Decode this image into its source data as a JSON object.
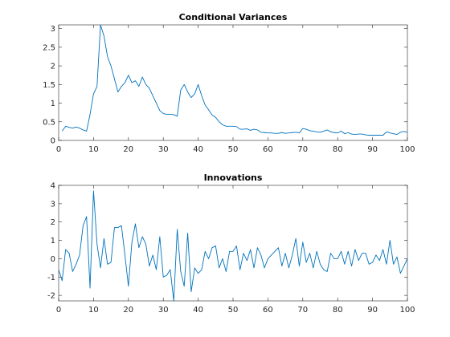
{
  "chart_data": [
    {
      "type": "line",
      "title": "Conditional Variances",
      "xlabel": "",
      "ylabel": "",
      "xlim": [
        0,
        100
      ],
      "ylim": [
        0,
        3.1
      ],
      "xticks": [
        0,
        10,
        20,
        30,
        40,
        50,
        60,
        70,
        80,
        90,
        100
      ],
      "yticks": [
        0,
        0.5,
        1,
        1.5,
        2,
        2.5,
        3
      ],
      "ytick_labels": [
        "0",
        "0.5",
        "1",
        "1.5",
        "2",
        "2.5",
        "3"
      ],
      "grid": false,
      "color": "#0072BD",
      "x": [
        1,
        2,
        3,
        4,
        5,
        6,
        7,
        8,
        9,
        10,
        11,
        12,
        13,
        14,
        15,
        16,
        17,
        18,
        19,
        20,
        21,
        22,
        23,
        24,
        25,
        26,
        27,
        28,
        29,
        30,
        31,
        32,
        33,
        34,
        35,
        36,
        37,
        38,
        39,
        40,
        41,
        42,
        43,
        44,
        45,
        46,
        47,
        48,
        49,
        50,
        51,
        52,
        53,
        54,
        55,
        56,
        57,
        58,
        59,
        60,
        61,
        62,
        63,
        64,
        65,
        66,
        67,
        68,
        69,
        70,
        71,
        72,
        73,
        74,
        75,
        76,
        77,
        78,
        79,
        80,
        81,
        82,
        83,
        84,
        85,
        86,
        87,
        88,
        89,
        90,
        91,
        92,
        93,
        94,
        95,
        96,
        97,
        98,
        99,
        100
      ],
      "values": [
        0.25,
        0.38,
        0.35,
        0.33,
        0.36,
        0.33,
        0.28,
        0.25,
        0.7,
        1.25,
        1.45,
        3.1,
        2.8,
        2.25,
        2.0,
        1.65,
        1.3,
        1.45,
        1.55,
        1.75,
        1.55,
        1.6,
        1.45,
        1.7,
        1.5,
        1.4,
        1.2,
        1.0,
        0.8,
        0.72,
        0.7,
        0.7,
        0.69,
        0.65,
        1.35,
        1.5,
        1.3,
        1.15,
        1.25,
        1.5,
        1.2,
        0.95,
        0.82,
        0.68,
        0.62,
        0.5,
        0.42,
        0.38,
        0.38,
        0.38,
        0.37,
        0.3,
        0.3,
        0.31,
        0.27,
        0.3,
        0.28,
        0.22,
        0.21,
        0.2,
        0.2,
        0.19,
        0.19,
        0.21,
        0.19,
        0.2,
        0.21,
        0.22,
        0.2,
        0.32,
        0.3,
        0.26,
        0.25,
        0.23,
        0.22,
        0.25,
        0.28,
        0.23,
        0.21,
        0.2,
        0.25,
        0.18,
        0.21,
        0.17,
        0.16,
        0.17,
        0.17,
        0.15,
        0.14,
        0.14,
        0.14,
        0.14,
        0.14,
        0.23,
        0.2,
        0.18,
        0.16,
        0.22,
        0.24,
        0.22
      ]
    },
    {
      "type": "line",
      "title": "Innovations",
      "xlabel": "",
      "ylabel": "",
      "xlim": [
        0,
        100
      ],
      "ylim": [
        -2.3,
        4
      ],
      "xticks": [
        0,
        10,
        20,
        30,
        40,
        50,
        60,
        70,
        80,
        90,
        100
      ],
      "yticks": [
        -2,
        -1,
        0,
        1,
        2,
        3,
        4
      ],
      "ytick_labels": [
        "-2",
        "-1",
        "0",
        "1",
        "2",
        "3",
        "4"
      ],
      "grid": false,
      "color": "#0072BD",
      "x": [
        0,
        1,
        2,
        3,
        4,
        5,
        6,
        7,
        8,
        9,
        10,
        11,
        12,
        13,
        14,
        15,
        16,
        17,
        18,
        19,
        20,
        21,
        22,
        23,
        24,
        25,
        26,
        27,
        28,
        29,
        30,
        31,
        32,
        33,
        34,
        35,
        36,
        37,
        38,
        39,
        40,
        41,
        42,
        43,
        44,
        45,
        46,
        47,
        48,
        49,
        50,
        51,
        52,
        53,
        54,
        55,
        56,
        57,
        58,
        59,
        60,
        61,
        62,
        63,
        64,
        65,
        66,
        67,
        68,
        69,
        70,
        71,
        72,
        73,
        74,
        75,
        76,
        77,
        78,
        79,
        80,
        81,
        82,
        83,
        84,
        85,
        86,
        87,
        88,
        89,
        90,
        91,
        92,
        93,
        94,
        95,
        96,
        97,
        98,
        99,
        100
      ],
      "values": [
        -0.6,
        -1.2,
        0.5,
        0.3,
        -0.7,
        -0.3,
        0.2,
        1.8,
        2.3,
        -1.6,
        3.7,
        0.8,
        -0.5,
        1.1,
        -0.3,
        -0.2,
        1.7,
        1.7,
        1.8,
        0.2,
        -1.5,
        0.9,
        1.9,
        0.6,
        1.2,
        0.8,
        -0.4,
        0.2,
        -0.6,
        1.2,
        -1.0,
        -0.9,
        -0.6,
        -2.3,
        1.6,
        -0.7,
        -1.5,
        1.4,
        -1.8,
        -0.5,
        -0.8,
        -0.6,
        0.4,
        0.0,
        0.6,
        0.7,
        -0.5,
        0.0,
        -0.7,
        0.4,
        0.4,
        0.7,
        -0.6,
        0.3,
        -0.1,
        0.5,
        -0.5,
        0.6,
        0.2,
        -0.5,
        0.0,
        0.2,
        0.4,
        0.6,
        -0.4,
        0.3,
        -0.5,
        0.2,
        1.1,
        -0.4,
        0.9,
        -0.2,
        0.3,
        -0.5,
        0.4,
        -0.3,
        -0.6,
        -0.7,
        0.3,
        0.0,
        0.0,
        0.4,
        -0.3,
        0.4,
        -0.4,
        0.5,
        -0.1,
        0.3,
        0.3,
        -0.3,
        -0.2,
        0.2,
        -0.1,
        0.5,
        -0.3,
        1.0,
        -0.3,
        0.1,
        -0.8,
        -0.4,
        0.0
      ]
    }
  ]
}
